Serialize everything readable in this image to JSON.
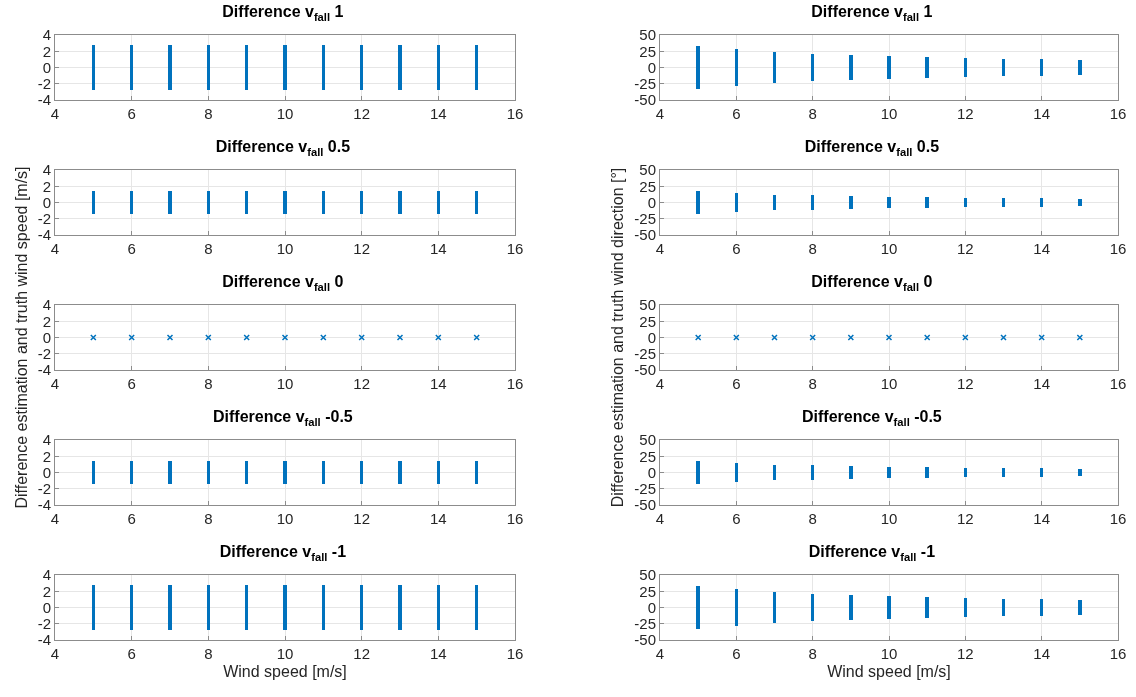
{
  "chart_data": [
    {
      "type": "bar",
      "title": "Difference v$_{fall}$ 1",
      "x": [
        5,
        6,
        7,
        8,
        9,
        10,
        11,
        12,
        13,
        14,
        15
      ],
      "values": [
        5.6,
        5.6,
        5.6,
        5.6,
        5.6,
        5.6,
        5.6,
        5.6,
        5.6,
        5.6,
        5.6
      ],
      "base": [
        -2.8,
        -2.8,
        -2.8,
        -2.8,
        -2.8,
        -2.8,
        -2.8,
        -2.8,
        -2.8,
        -2.8,
        -2.8
      ],
      "color": "#0072bd",
      "xlim": [
        4,
        16
      ],
      "xticks": [
        4,
        6,
        8,
        10,
        12,
        14,
        16
      ],
      "ylim": [
        -4,
        4
      ],
      "yticks": [
        -4,
        -2,
        0,
        2,
        4
      ],
      "grid": true
    },
    {
      "type": "bar",
      "title": "Difference v$_{fall}$ 1",
      "x": [
        5,
        6,
        7,
        8,
        9,
        10,
        11,
        12,
        13,
        14,
        15
      ],
      "values": [
        66,
        56,
        48,
        42,
        38,
        34,
        32,
        29,
        26,
        25,
        23
      ],
      "base": [
        -33,
        -28,
        -24,
        -21,
        -19,
        -17,
        -16,
        -14.5,
        -13,
        -12.5,
        -11.5
      ],
      "color": "#0072bd",
      "xlim": [
        4,
        16
      ],
      "xticks": [
        4,
        6,
        8,
        10,
        12,
        14,
        16
      ],
      "ylim": [
        -50,
        50
      ],
      "yticks": [
        -50,
        -25,
        0,
        25,
        50
      ],
      "grid": true
    },
    {
      "type": "bar",
      "title": "Difference v$_{fall}$ 0.5",
      "x": [
        5,
        6,
        7,
        8,
        9,
        10,
        11,
        12,
        13,
        14,
        15
      ],
      "values": [
        2.8,
        2.8,
        2.8,
        2.8,
        2.8,
        2.8,
        2.8,
        2.8,
        2.8,
        2.8,
        2.8
      ],
      "base": [
        -1.4,
        -1.4,
        -1.4,
        -1.4,
        -1.4,
        -1.4,
        -1.4,
        -1.4,
        -1.4,
        -1.4,
        -1.4
      ],
      "color": "#0072bd",
      "xlim": [
        4,
        16
      ],
      "xticks": [
        4,
        6,
        8,
        10,
        12,
        14,
        16
      ],
      "ylim": [
        -4,
        4
      ],
      "yticks": [
        -4,
        -2,
        0,
        2,
        4
      ],
      "grid": true
    },
    {
      "type": "bar",
      "title": "Difference v$_{fall}$ 0.5",
      "x": [
        5,
        6,
        7,
        8,
        9,
        10,
        11,
        12,
        13,
        14,
        15
      ],
      "values": [
        34,
        28,
        24,
        22,
        20,
        18,
        16,
        14,
        14,
        14,
        12
      ],
      "base": [
        -17,
        -14,
        -12,
        -11,
        -10,
        -9,
        -8,
        -7,
        -7,
        -7,
        -6
      ],
      "color": "#0072bd",
      "xlim": [
        4,
        16
      ],
      "xticks": [
        4,
        6,
        8,
        10,
        12,
        14,
        16
      ],
      "ylim": [
        -50,
        50
      ],
      "yticks": [
        -50,
        -25,
        0,
        25,
        50
      ],
      "grid": true
    },
    {
      "type": "scatter",
      "title": "Difference v$_{fall}$ 0",
      "ylabel": "Difference estimation and truth wind speed [m/s]",
      "x": [
        5,
        6,
        7,
        8,
        9,
        10,
        11,
        12,
        13,
        14,
        15
      ],
      "values": [
        0,
        0,
        0,
        0,
        0,
        0,
        0,
        0,
        0,
        0,
        0
      ],
      "color": "#0072bd",
      "marker": "cross",
      "xlim": [
        4,
        16
      ],
      "xticks": [
        4,
        6,
        8,
        10,
        12,
        14,
        16
      ],
      "ylim": [
        -4,
        4
      ],
      "yticks": [
        -4,
        -2,
        0,
        2,
        4
      ],
      "grid": true
    },
    {
      "type": "scatter",
      "title": "Difference v$_{fall}$ 0",
      "ylabel": "Difference estimation and truth wind direction [°]",
      "x": [
        5,
        6,
        7,
        8,
        9,
        10,
        11,
        12,
        13,
        14,
        15
      ],
      "values": [
        0,
        0,
        0,
        0,
        0,
        0,
        0,
        0,
        0,
        0,
        0
      ],
      "color": "#0072bd",
      "marker": "cross",
      "xlim": [
        4,
        16
      ],
      "xticks": [
        4,
        6,
        8,
        10,
        12,
        14,
        16
      ],
      "ylim": [
        -50,
        50
      ],
      "yticks": [
        -50,
        -25,
        0,
        25,
        50
      ],
      "grid": true
    },
    {
      "type": "bar",
      "title": "Difference v$_{fall}$ -0.5",
      "x": [
        5,
        6,
        7,
        8,
        9,
        10,
        11,
        12,
        13,
        14,
        15
      ],
      "values": [
        2.8,
        2.8,
        2.8,
        2.8,
        2.8,
        2.8,
        2.8,
        2.8,
        2.8,
        2.8,
        2.8
      ],
      "base": [
        -1.4,
        -1.4,
        -1.4,
        -1.4,
        -1.4,
        -1.4,
        -1.4,
        -1.4,
        -1.4,
        -1.4,
        -1.4
      ],
      "color": "#0072bd",
      "xlim": [
        4,
        16
      ],
      "xticks": [
        4,
        6,
        8,
        10,
        12,
        14,
        16
      ],
      "ylim": [
        -4,
        4
      ],
      "yticks": [
        -4,
        -2,
        0,
        2,
        4
      ],
      "grid": true
    },
    {
      "type": "bar",
      "title": "Difference v$_{fall}$ -0.5",
      "x": [
        5,
        6,
        7,
        8,
        9,
        10,
        11,
        12,
        13,
        14,
        15
      ],
      "values": [
        34,
        28,
        24,
        22,
        20,
        18,
        16,
        14,
        14,
        14,
        12
      ],
      "base": [
        -17,
        -14,
        -12,
        -11,
        -10,
        -9,
        -8,
        -7,
        -7,
        -7,
        -6
      ],
      "color": "#0072bd",
      "xlim": [
        4,
        16
      ],
      "xticks": [
        4,
        6,
        8,
        10,
        12,
        14,
        16
      ],
      "ylim": [
        -50,
        50
      ],
      "yticks": [
        -50,
        -25,
        0,
        25,
        50
      ],
      "grid": true
    },
    {
      "type": "bar",
      "title": "Difference v$_{fall}$ -1",
      "xlabel": "Wind speed [m/s]",
      "x": [
        5,
        6,
        7,
        8,
        9,
        10,
        11,
        12,
        13,
        14,
        15
      ],
      "values": [
        5.6,
        5.6,
        5.6,
        5.6,
        5.6,
        5.6,
        5.6,
        5.6,
        5.6,
        5.6,
        5.6
      ],
      "base": [
        -2.8,
        -2.8,
        -2.8,
        -2.8,
        -2.8,
        -2.8,
        -2.8,
        -2.8,
        -2.8,
        -2.8,
        -2.8
      ],
      "color": "#0072bd",
      "xlim": [
        4,
        16
      ],
      "xticks": [
        4,
        6,
        8,
        10,
        12,
        14,
        16
      ],
      "ylim": [
        -4,
        4
      ],
      "yticks": [
        -4,
        -2,
        0,
        2,
        4
      ],
      "grid": true
    },
    {
      "type": "bar",
      "title": "Difference v$_{fall}$ -1",
      "xlabel": "Wind speed [m/s]",
      "x": [
        5,
        6,
        7,
        8,
        9,
        10,
        11,
        12,
        13,
        14,
        15
      ],
      "values": [
        66,
        56,
        48,
        42,
        38,
        34,
        32,
        29,
        26,
        25,
        23
      ],
      "base": [
        -33,
        -28,
        -24,
        -21,
        -19,
        -17,
        -16,
        -14.5,
        -13,
        -12.5,
        -11.5
      ],
      "color": "#0072bd",
      "xlim": [
        4,
        16
      ],
      "xticks": [
        4,
        6,
        8,
        10,
        12,
        14,
        16
      ],
      "ylim": [
        -50,
        50
      ],
      "yticks": [
        -50,
        -25,
        0,
        25,
        50
      ],
      "grid": true
    }
  ]
}
